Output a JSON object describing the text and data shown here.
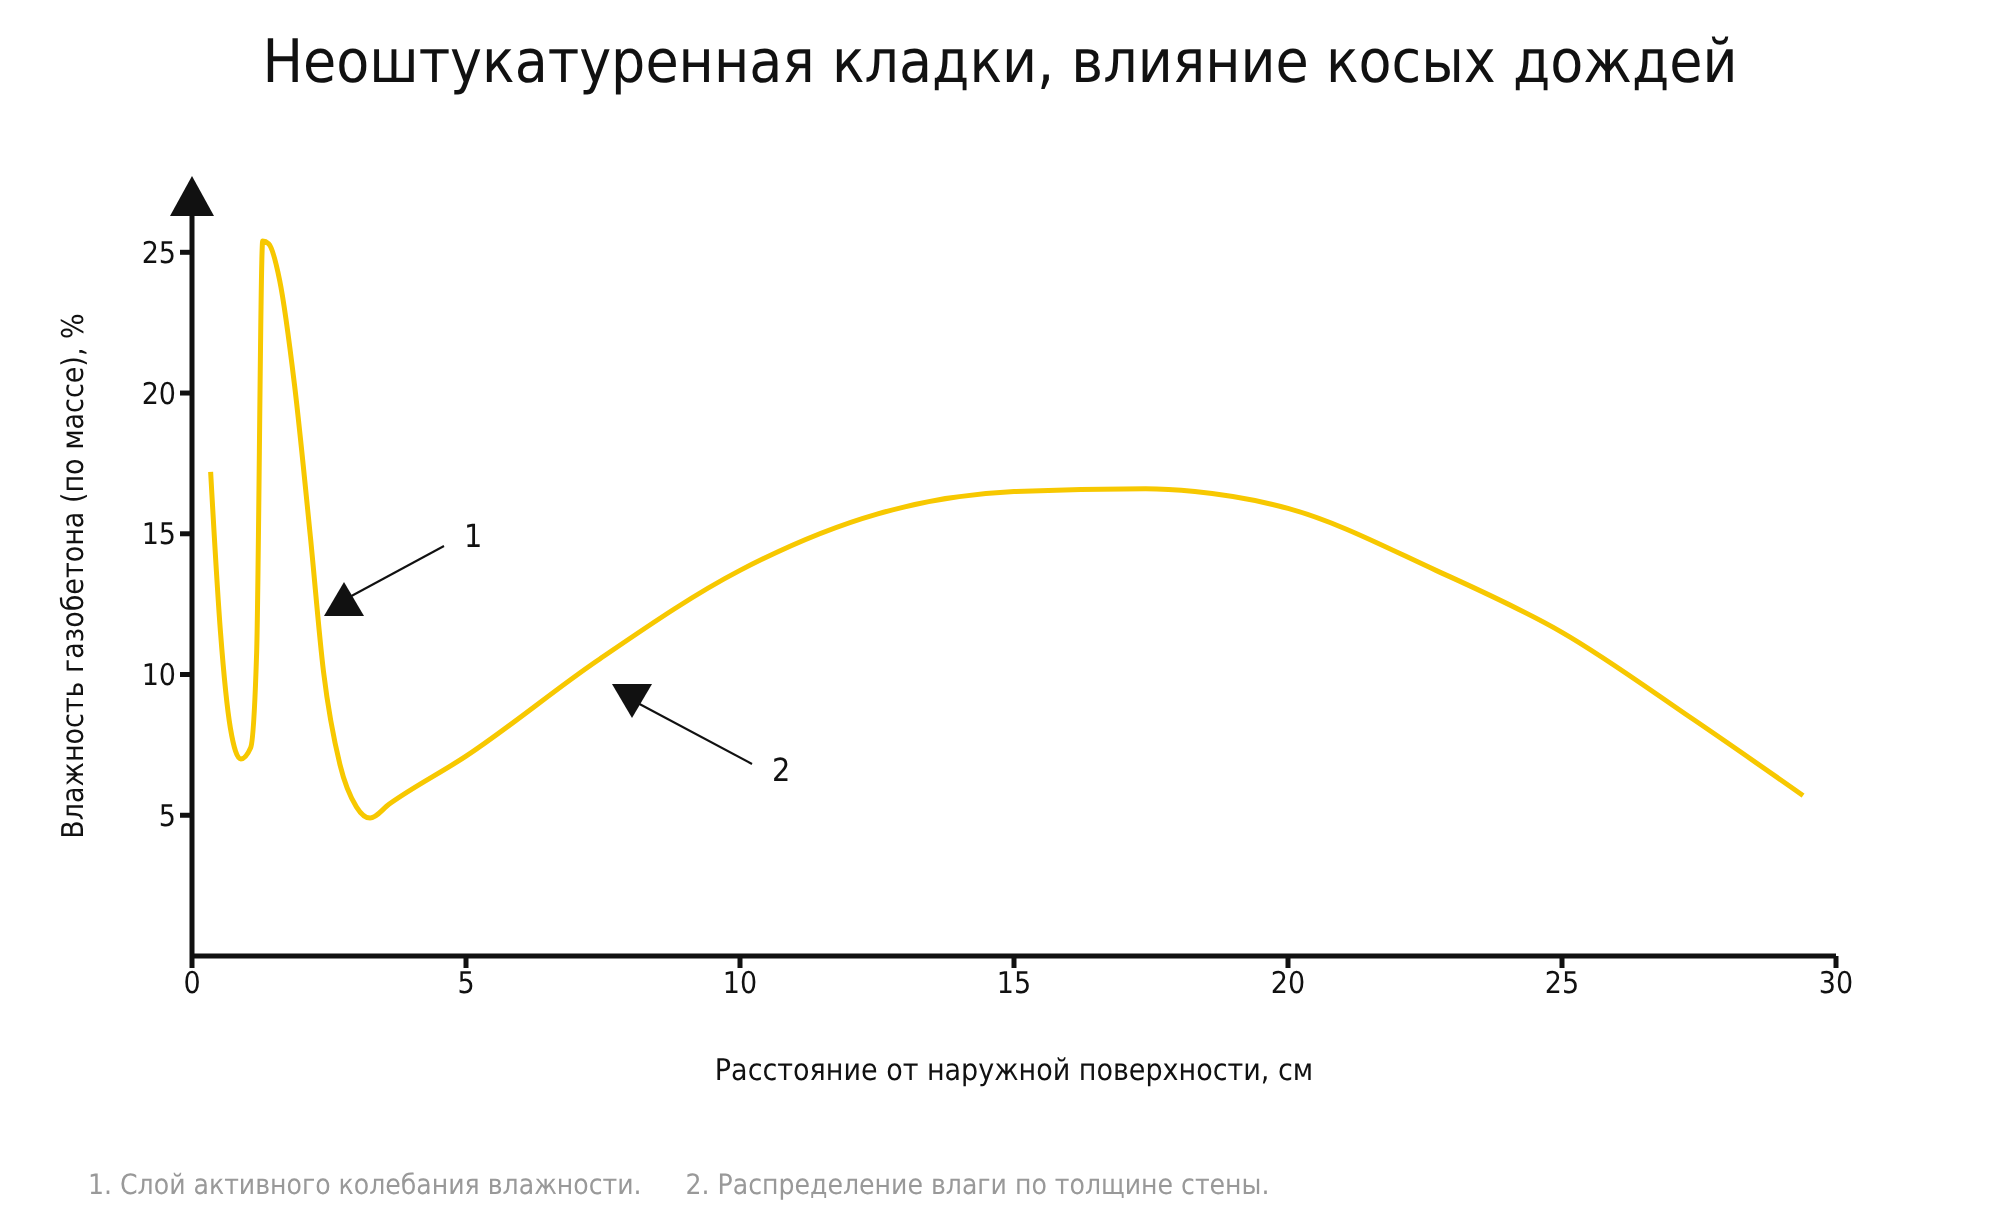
{
  "chart_data": {
    "type": "line",
    "title": "Неоштукатуренная кладки, влияние косых дождей",
    "xlabel": "Расстояние от наружной поверхности, см",
    "ylabel": "Влажность газобетона (по массе), %",
    "xlim": [
      0,
      30
    ],
    "xticks": [
      0,
      5,
      10,
      15,
      20,
      25,
      30
    ],
    "ylim": [
      0,
      27
    ],
    "yticks": [
      5,
      10,
      15,
      20,
      25
    ],
    "grid": false,
    "legend": false,
    "marker": "none",
    "line_style": "solid",
    "series": [
      {
        "color": "#f7c800",
        "x": [
          0.34,
          0.52,
          0.7,
          0.89,
          1.07,
          1.18,
          1.29,
          1.4,
          1.6,
          1.87,
          2.16,
          2.4,
          2.7,
          3.0,
          3.25,
          3.6,
          5,
          7.4,
          10,
          12.5,
          15,
          17.4,
          18.3,
          20,
          22.7,
          25,
          27.4,
          29.4
        ],
        "values": [
          17.2,
          11.5,
          8.1,
          7.0,
          7.4,
          10.8,
          25.4,
          25.3,
          24,
          20.3,
          14.9,
          10.1,
          6.8,
          5.3,
          4.9,
          5.4,
          7.1,
          10.5,
          13.7,
          15.7,
          16.5,
          16.6,
          16.5,
          15.9,
          13.7,
          11.5,
          8.4,
          5.7
        ]
      }
    ],
    "annotations": [
      "1",
      "2",
      "1. Слой активного колебания влажности.",
      "2. Распределение влаги по толщине стены."
    ]
  }
}
